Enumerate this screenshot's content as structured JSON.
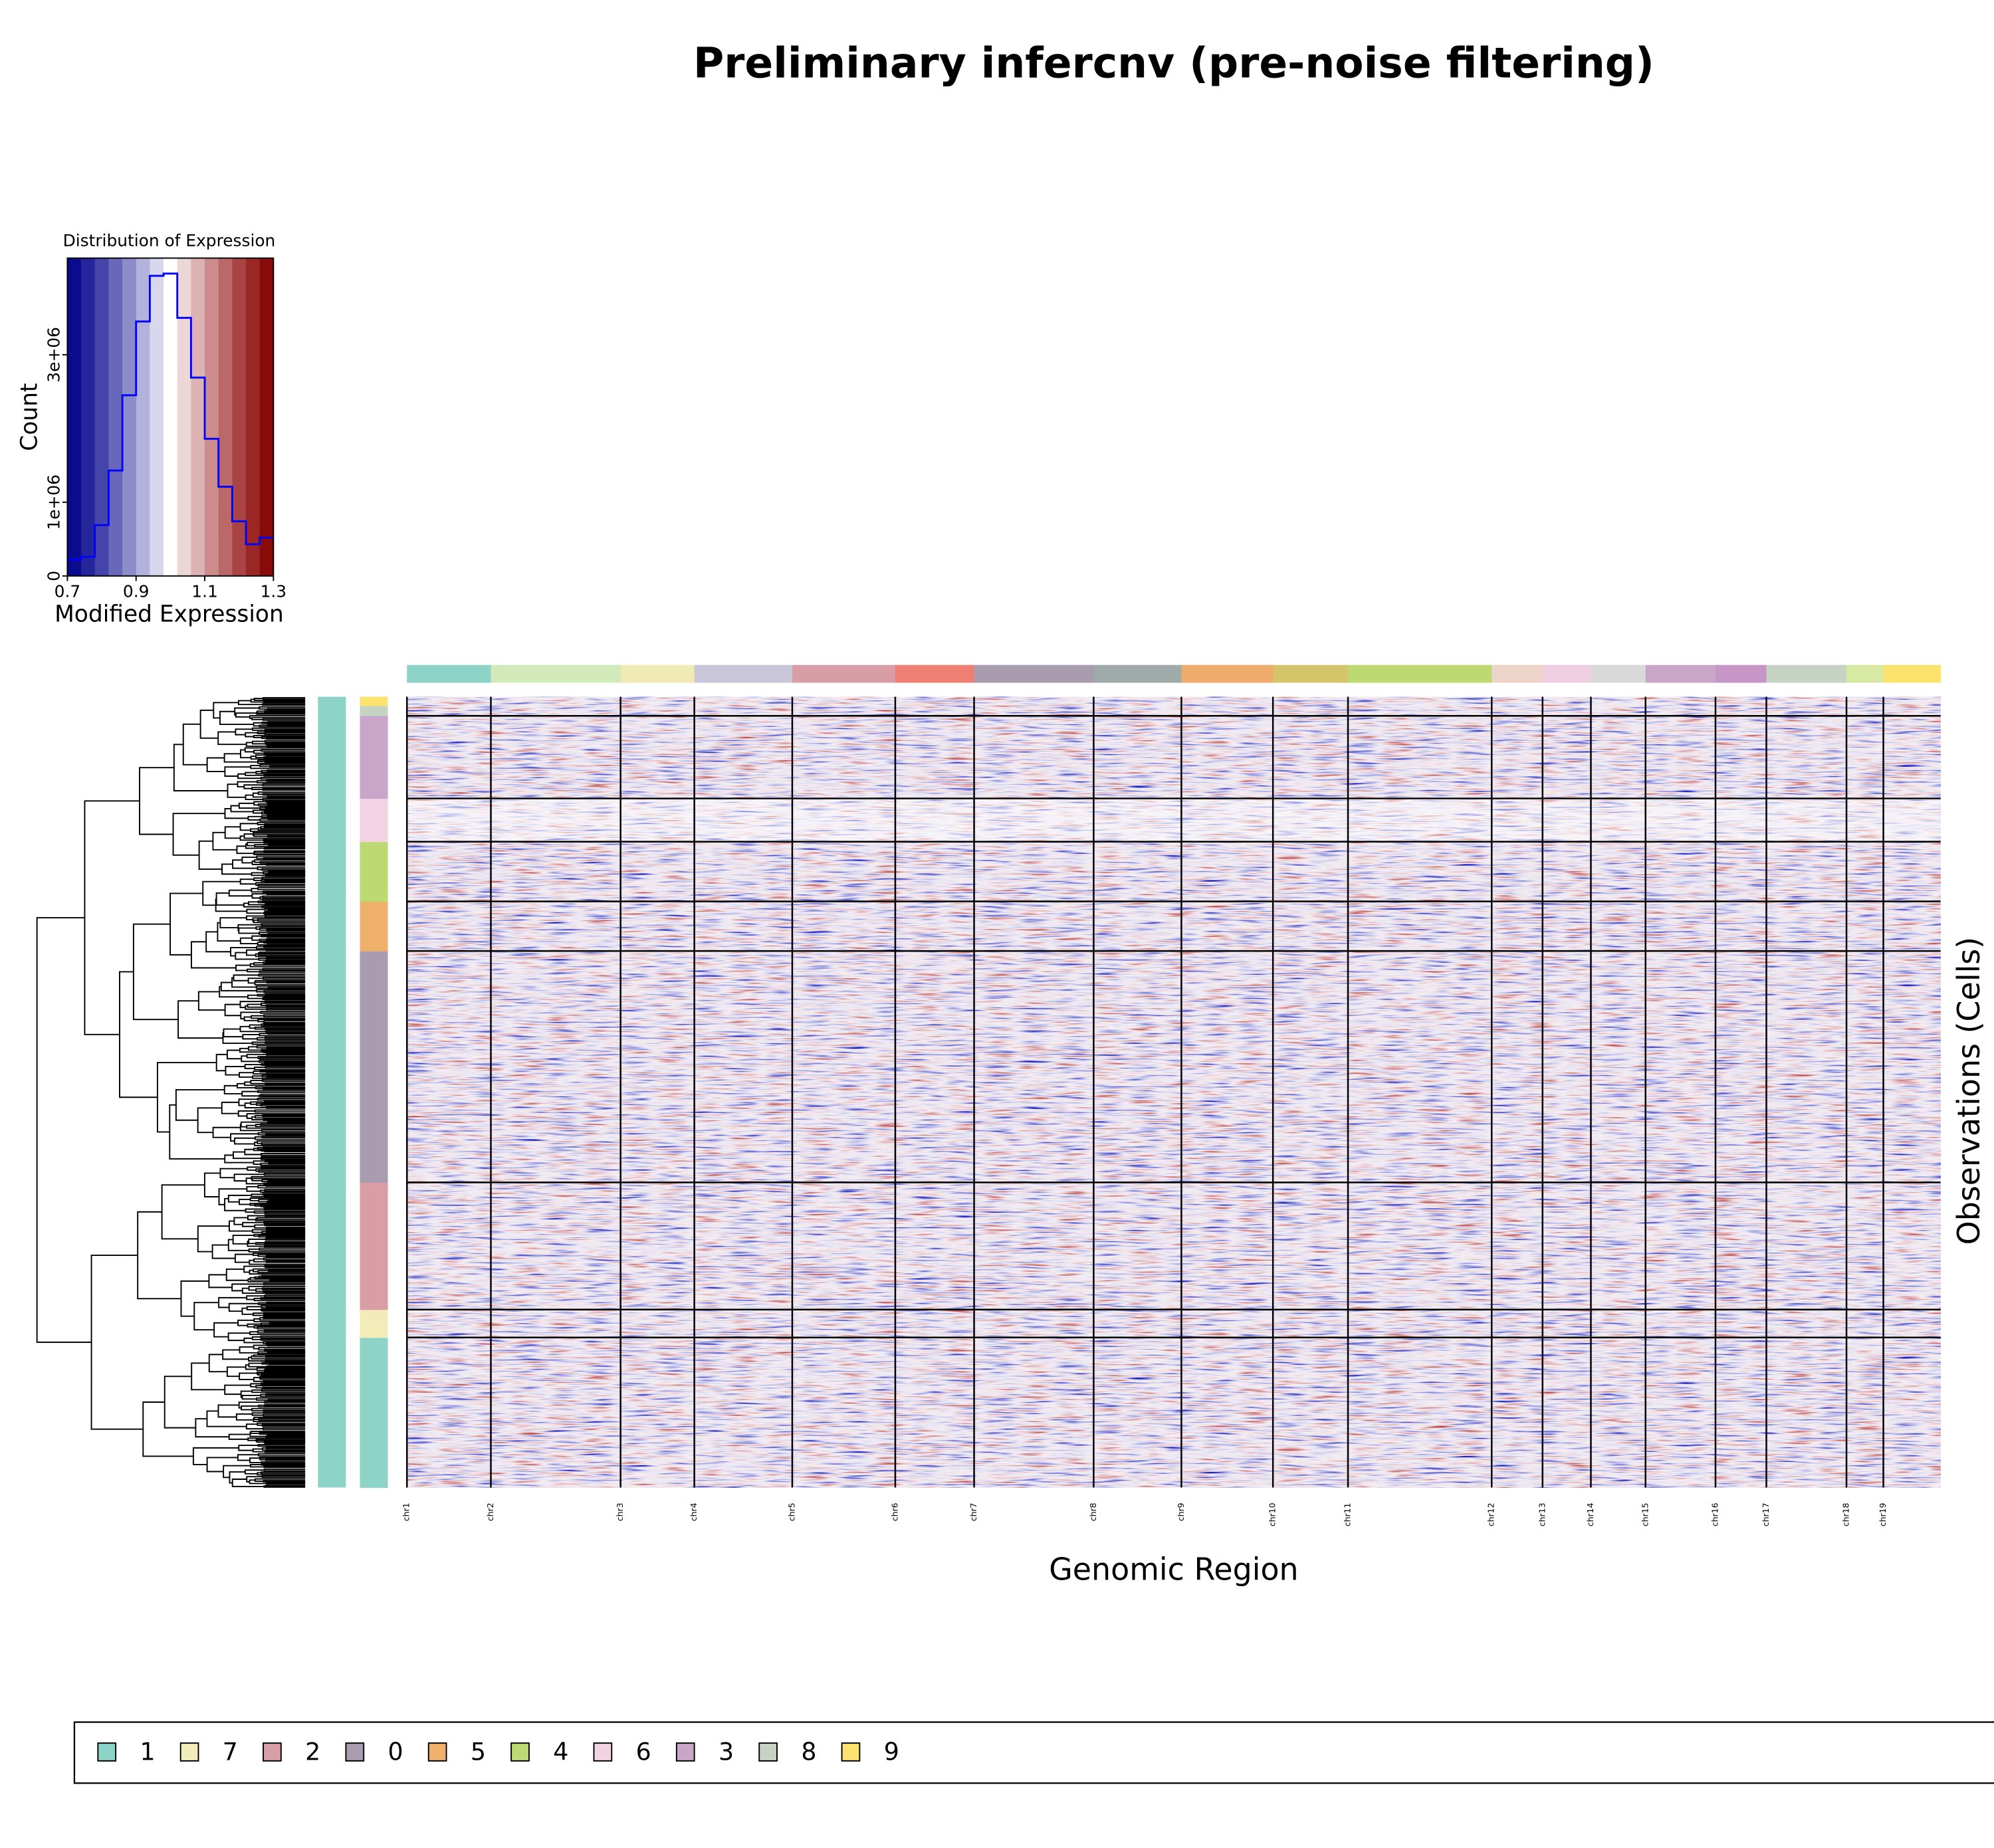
{
  "chart_data": [
    {
      "type": "histogram",
      "title": "Distribution of Expression",
      "xlabel": "Modified Expression",
      "ylabel": "Count",
      "bins": [
        0.7,
        0.74,
        0.78,
        0.82,
        0.86,
        0.9,
        0.94,
        0.98,
        1.02,
        1.06,
        1.1,
        1.14,
        1.18,
        1.22,
        1.26,
        1.3
      ],
      "counts": [
        220000,
        260000,
        690000,
        1430000,
        2450000,
        3450000,
        4070000,
        4100000,
        3500000,
        2690000,
        1860000,
        1210000,
        740000,
        430000,
        520000
      ],
      "color": "#0000ff",
      "band_colors": [
        "#0b0b8f",
        "#26269c",
        "#4444aa",
        "#6868ba",
        "#8c8cca",
        "#b2b2dc",
        "#d8d8ec",
        "#ffffff",
        "#ecd6d6",
        "#dcb2b2",
        "#cc8c8c",
        "#bb6868",
        "#aa4444",
        "#9a2626",
        "#8b0b0b"
      ],
      "xlim": [
        0.7,
        1.3
      ],
      "ylim": [
        0,
        4310000
      ],
      "xticks": [
        0.7,
        0.9,
        1.1,
        1.3
      ],
      "yticks": [
        0,
        {
          "value": 1000000,
          "label": "1e+06"
        },
        {
          "value": 3000000,
          "label": "3e+06"
        }
      ]
    },
    {
      "type": "heatmap",
      "title": "Preliminary infercnv (pre-noise filtering)",
      "xlabel": "Genomic Region",
      "ylabel": "Observations (Cells)",
      "chromosomes": [
        {
          "name": "chr1",
          "color": "#8dd3c7",
          "genes": 660
        },
        {
          "name": "chr2",
          "color": "#d2e9b9",
          "genes": 1020
        },
        {
          "name": "chr3",
          "color": "#f0eab4",
          "genes": 580
        },
        {
          "name": "chr4",
          "color": "#c8c6d8",
          "genes": 770
        },
        {
          "name": "chr5",
          "color": "#d99da6",
          "genes": 810
        },
        {
          "name": "chr6",
          "color": "#f07f73",
          "genes": 620
        },
        {
          "name": "chr7",
          "color": "#a99cae",
          "genes": 940
        },
        {
          "name": "chr8",
          "color": "#a0aaa9",
          "genes": 690
        },
        {
          "name": "chr9",
          "color": "#efab6a",
          "genes": 720
        },
        {
          "name": "chr10",
          "color": "#d4c46a",
          "genes": 590
        },
        {
          "name": "chr11",
          "color": "#bcd973",
          "genes": 1130
        },
        {
          "name": "chr12",
          "color": "#ecd4c8",
          "genes": 400
        },
        {
          "name": "chr13",
          "color": "#f0cfe3",
          "genes": 380
        },
        {
          "name": "chr14",
          "color": "#d9d9d9",
          "genes": 430
        },
        {
          "name": "chr15",
          "color": "#c9a5c9",
          "genes": 550
        },
        {
          "name": "chr16",
          "color": "#c596c6",
          "genes": 400
        },
        {
          "name": "chr17",
          "color": "#c6d3c2",
          "genes": 630
        },
        {
          "name": "chr18",
          "color": "#d7e9a3",
          "genes": 290
        },
        {
          "name": "chr19",
          "color": "#fbe36e",
          "genes": 450
        }
      ],
      "groups": [
        {
          "name": "1",
          "color": "#8dd3c7",
          "cells": 118
        },
        {
          "name": "7",
          "color": "#f2edb8",
          "cells": 22
        },
        {
          "name": "2",
          "color": "#d99da6",
          "cells": 100
        },
        {
          "name": "0",
          "color": "#a99cae",
          "cells": 182
        },
        {
          "name": "5",
          "color": "#efb06c",
          "cells": 39
        },
        {
          "name": "4",
          "color": "#bcd973",
          "cells": 47
        },
        {
          "name": "6",
          "color": "#f3d3e3",
          "cells": 34
        },
        {
          "name": "3",
          "color": "#c9a5c9",
          "cells": 65
        },
        {
          "name": "8",
          "color": "#c6d3c2",
          "cells": 8
        },
        {
          "name": "9",
          "color": "#fbe36e",
          "cells": 7
        }
      ]
    }
  ]
}
